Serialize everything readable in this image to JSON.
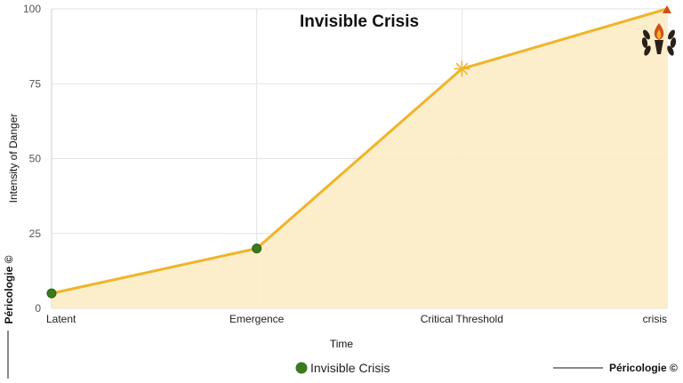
{
  "chart_data": {
    "type": "area",
    "title": "Invisible Crisis",
    "xlabel": "Time",
    "ylabel": "Intensity of Danger",
    "categories": [
      "Latent",
      "Emergence",
      "Critical Threshold",
      "crisis"
    ],
    "series": [
      {
        "name": "Invisible Crisis",
        "values": [
          5,
          20,
          80,
          100
        ]
      }
    ],
    "ylim": [
      0,
      100
    ],
    "yticks": [
      0,
      25,
      50,
      75,
      100
    ],
    "grid": true,
    "legend": "bottom-center",
    "colors": {
      "line": "#f0b429",
      "fill": "#fcecc4",
      "marker": "#3a7a1c",
      "marker_threshold": "#f0b429",
      "marker_crisis": "#d0501a",
      "grid": "#e2e2e2"
    }
  },
  "watermark": {
    "left_text": "Péricologie ©",
    "right_text": "Péricologie ©"
  },
  "logo": {
    "icon": "torch-laurel-icon"
  }
}
